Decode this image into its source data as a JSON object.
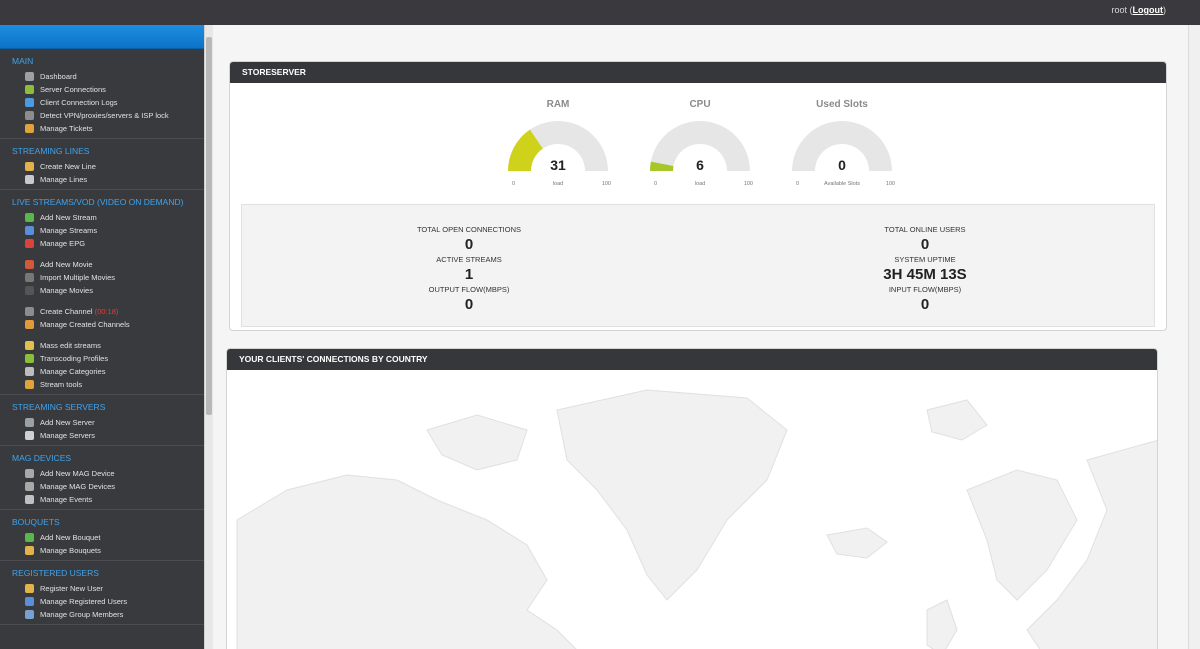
{
  "topbar": {
    "user": "root",
    "logout_open": " (",
    "logout": "Logout",
    "logout_close": ")"
  },
  "sidebar": {
    "sections": [
      {
        "title": "MAIN",
        "items": [
          {
            "label": "Dashboard",
            "icon": "dashboard-icon",
            "color": "#9aa0a6"
          },
          {
            "label": "Server Connections",
            "icon": "connections-icon",
            "color": "#8bbf3a"
          },
          {
            "label": "Client Connection Logs",
            "icon": "logs-icon",
            "color": "#4b9be0"
          },
          {
            "label": "Detect VPN/proxies/servers & ISP lock",
            "icon": "vpn-icon",
            "color": "#8d8d8d"
          },
          {
            "label": "Manage Tickets",
            "icon": "tickets-icon",
            "color": "#e0a23a"
          }
        ]
      },
      {
        "title": "STREAMING LINES",
        "items": [
          {
            "label": "Create New Line",
            "icon": "user-add-icon",
            "color": "#e0b34b"
          },
          {
            "label": "Manage Lines",
            "icon": "lines-icon",
            "color": "#c9c9c9"
          }
        ]
      },
      {
        "title": "LIVE STREAMS/VOD (VIDEO ON DEMAND)",
        "items": [
          {
            "label": "Add New Stream",
            "icon": "add-stream-icon",
            "color": "#58b84a"
          },
          {
            "label": "Manage Streams",
            "icon": "streams-icon",
            "color": "#5a8fd8"
          },
          {
            "label": "Manage EPG",
            "icon": "epg-icon",
            "color": "#d8433a"
          },
          {
            "gap": true
          },
          {
            "label": "Add New Movie",
            "icon": "movie-add-icon",
            "color": "#d05a3a"
          },
          {
            "label": "Import Multiple Movies",
            "icon": "import-icon",
            "color": "#777"
          },
          {
            "label": "Manage Movies",
            "icon": "movies-icon",
            "color": "#555"
          },
          {
            "gap": true
          },
          {
            "label": "Create Channel",
            "extra": " (00:18)",
            "icon": "channel-icon",
            "color": "#8c8c8c"
          },
          {
            "label": "Manage Created Channels",
            "icon": "created-channels-icon",
            "color": "#e09a3a"
          },
          {
            "gap": true
          },
          {
            "label": "Mass edit streams",
            "icon": "mass-edit-icon",
            "color": "#e0c24b"
          },
          {
            "label": "Transcoding Profiles",
            "icon": "transcode-icon",
            "color": "#8bbf3a"
          },
          {
            "label": "Manage Categories",
            "icon": "categories-icon",
            "color": "#bdbdbd"
          },
          {
            "label": "Stream tools",
            "icon": "tools-icon",
            "color": "#e0a23a"
          }
        ]
      },
      {
        "title": "STREAMING SERVERS",
        "items": [
          {
            "label": "Add New Server",
            "icon": "server-add-icon",
            "color": "#9aa0a6"
          },
          {
            "label": "Manage Servers",
            "icon": "servers-icon",
            "color": "#d0d0d0"
          }
        ]
      },
      {
        "title": "MAG DEVICES",
        "items": [
          {
            "label": "Add New MAG Device",
            "icon": "mag-add-icon",
            "color": "#a8a8a8"
          },
          {
            "label": "Manage MAG Devices",
            "icon": "mag-icon",
            "color": "#a8a8a8"
          },
          {
            "label": "Manage Events",
            "icon": "events-icon",
            "color": "#c0c0c0"
          }
        ]
      },
      {
        "title": "BOUQUETS",
        "items": [
          {
            "label": "Add New Bouquet",
            "icon": "bouquet-add-icon",
            "color": "#58b84a"
          },
          {
            "label": "Manage Bouquets",
            "icon": "bouquets-icon",
            "color": "#e0b34b"
          }
        ]
      },
      {
        "title": "REGISTERED USERS",
        "items": [
          {
            "label": "Register New User",
            "icon": "register-user-icon",
            "color": "#e0b34b"
          },
          {
            "label": "Manage Registered Users",
            "icon": "registered-users-icon",
            "color": "#5a8fd8"
          },
          {
            "label": "Manage Group Members",
            "icon": "group-icon",
            "color": "#7aa0d0"
          }
        ]
      }
    ]
  },
  "server_panel": {
    "title": "STORESERVER",
    "gauges": [
      {
        "name": "ram",
        "title": "RAM",
        "value": 31,
        "min": "0",
        "max": "100",
        "label": "load",
        "fill": 0.31,
        "color": "#cfd21a"
      },
      {
        "name": "cpu",
        "title": "CPU",
        "value": 6,
        "min": "0",
        "max": "100",
        "label": "load",
        "fill": 0.06,
        "color": "#a6c62a"
      },
      {
        "name": "slots",
        "title": "Used Slots",
        "value": 0,
        "min": "0",
        "max": "100",
        "label": "Available Slots",
        "fill": 0.0,
        "color": "#cfd21a"
      }
    ],
    "stats_left": [
      {
        "label": "TOTAL OPEN CONNECTIONS",
        "value": "0"
      },
      {
        "label": "ACTIVE STREAMS",
        "value": "1"
      },
      {
        "label": "OUTPUT FLOW(MBPS)",
        "value": "0"
      }
    ],
    "stats_right": [
      {
        "label": "TOTAL ONLINE USERS",
        "value": "0"
      },
      {
        "label": "SYSTEM UPTIME",
        "value": "3H 45M 13S"
      },
      {
        "label": "INPUT FLOW(MBPS)",
        "value": "0"
      }
    ]
  },
  "map_panel": {
    "title": "YOUR CLIENTS' CONNECTIONS BY COUNTRY"
  },
  "colors": {
    "accent": "#1f8ee0",
    "sidebar_bg": "#383a3e",
    "section_title": "#3fa4ee",
    "gauge_track": "#e6e6e6"
  }
}
